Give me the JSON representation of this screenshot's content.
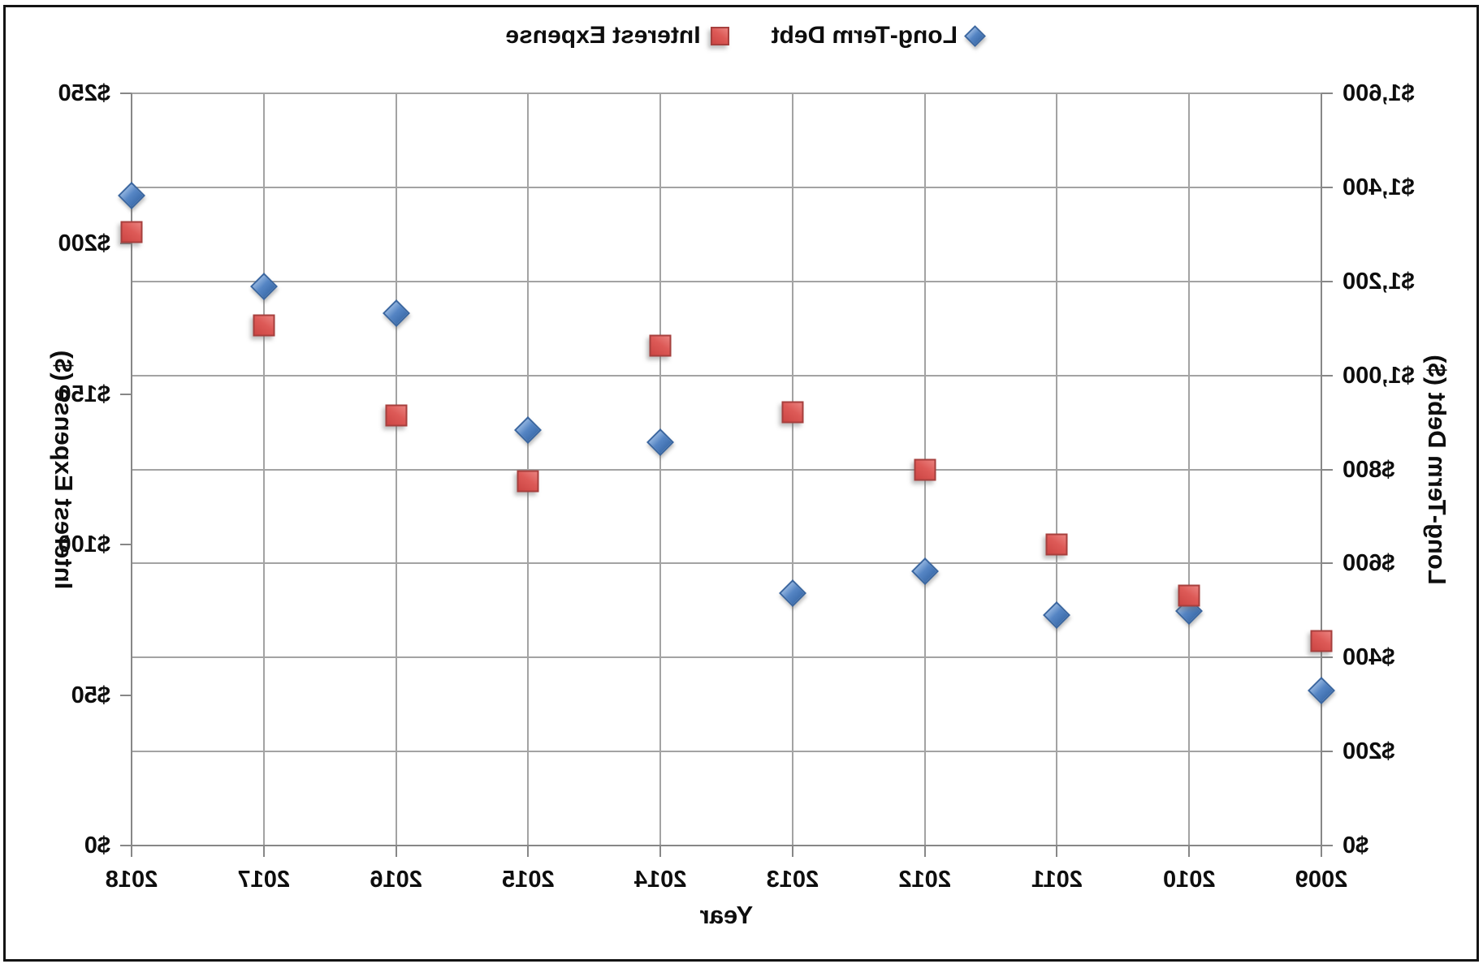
{
  "chart_data": {
    "type": "scatter",
    "title": "",
    "xlabel": "Year",
    "mirrored_horizontally": true,
    "grid": true,
    "legend_position": "top-center",
    "categories": [
      "2009",
      "2010",
      "2011",
      "2012",
      "2013",
      "2014",
      "2015",
      "2016",
      "2017",
      "2018"
    ],
    "series": [
      {
        "name": "Long-Term Debt",
        "axis": "left",
        "marker": "diamond",
        "color": "#4e7fbe",
        "values": [
          330,
          499,
          491,
          583,
          536,
          858,
          884,
          1133,
          1190,
          1383
        ]
      },
      {
        "name": "Interest Expense",
        "axis": "right",
        "marker": "square",
        "color": "#d9534f",
        "values": [
          68,
          83,
          100,
          125,
          144,
          166,
          121,
          143,
          173,
          204
        ]
      }
    ],
    "left_axis": {
      "title": "Long-Term Debt ($)",
      "min": 0,
      "max": 1600,
      "tick_step": 200,
      "tick_labels": [
        "$1,600",
        "$1,400",
        "$1,200",
        "$1,000",
        "$800",
        "$600",
        "$400",
        "$200",
        "$0"
      ]
    },
    "right_axis": {
      "title": "Interest Expense ($)",
      "min": 0,
      "max": 250,
      "tick_step": 50,
      "tick_labels": [
        "$250",
        "$200",
        "$150",
        "$100",
        "$50",
        "$0"
      ]
    },
    "x_axis": {
      "title": "Year",
      "tick_labels": [
        "2009",
        "2010",
        "2011",
        "2012",
        "2013",
        "2014",
        "2015",
        "2016",
        "2017",
        "2018"
      ]
    }
  },
  "colors": {
    "background": "#ffffff",
    "frame_border": "#141414",
    "gridline": "#a3a3a3",
    "axis_line": "#878787",
    "text": "#0e0e0e",
    "debt_marker_fill": "#4e7fbe",
    "debt_marker_border": "#3a66a0",
    "interest_marker_fill": "#d9534f",
    "interest_marker_border": "#a63f3d"
  },
  "legend": {
    "items": [
      {
        "label": "Long-Term Debt",
        "marker": "diamond"
      },
      {
        "label": "Interest Expense",
        "marker": "square"
      }
    ]
  }
}
